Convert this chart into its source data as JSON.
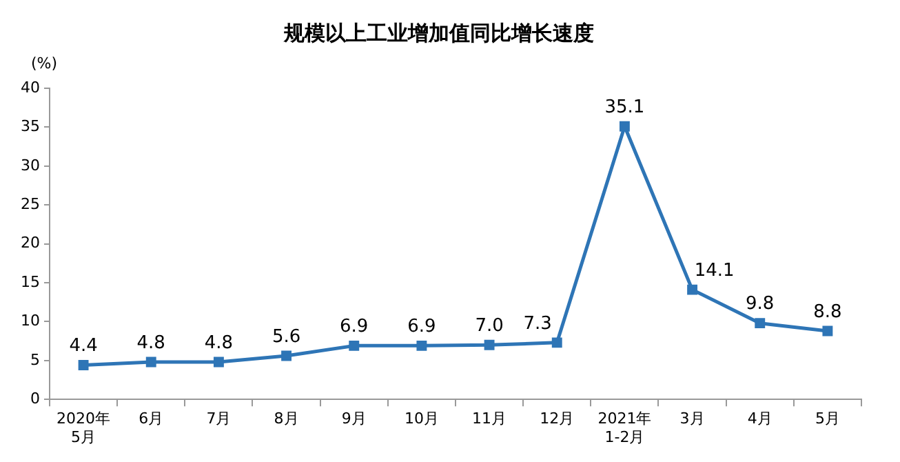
{
  "chart_data": {
    "type": "line",
    "title": "规模以上工业增加值同比增长速度",
    "ylabel": "(%)",
    "categories": [
      "2020年\n5月",
      "6月",
      "7月",
      "8月",
      "9月",
      "10月",
      "11月",
      "12月",
      "2021年\n1-2月",
      "3月",
      "4月",
      "5月"
    ],
    "series": [
      {
        "color": "#2e75b6",
        "values": [
          4.4,
          4.8,
          4.8,
          5.6,
          6.9,
          6.9,
          7.0,
          7.3,
          35.1,
          14.1,
          9.8,
          8.8
        ],
        "value_labels": [
          "4.4",
          "4.8",
          "4.8",
          "5.6",
          "6.9",
          "6.9",
          "7.0",
          "7.3",
          "35.1",
          "14.1",
          "9.8",
          "8.8"
        ]
      }
    ],
    "ylim": [
      0,
      40
    ],
    "yticks": [
      0,
      5,
      10,
      15,
      20,
      25,
      30,
      35,
      40
    ],
    "grid": false,
    "legend": false,
    "marker": "square",
    "line_style": "solid"
  }
}
